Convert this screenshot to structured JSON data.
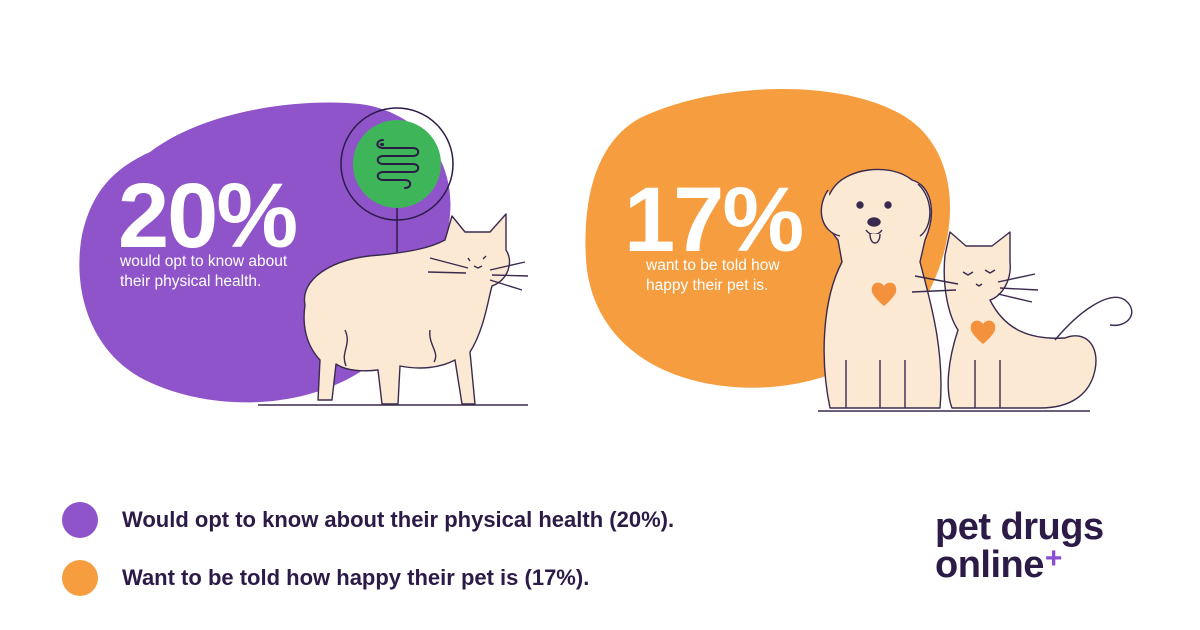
{
  "colors": {
    "purple": "#8f54c9",
    "orange": "#f69d3f",
    "green": "#3fb55a",
    "cream": "#fbe9d4",
    "heart": "#f3913c",
    "ink": "#2c1b47"
  },
  "stat_left": {
    "value": "20%",
    "caption_line1": "would opt to know about",
    "caption_line2": "their physical health."
  },
  "stat_right": {
    "value": "17%",
    "caption_line1": "want to be told how",
    "caption_line2": "happy their pet is."
  },
  "legend": [
    {
      "label": "Would opt to know about their physical health (20%).",
      "color": "#8f54c9"
    },
    {
      "label": "Want to be told how happy their pet is (17%).",
      "color": "#f69d3f"
    }
  ],
  "brand": {
    "line1": "pet drugs",
    "line2": "online",
    "plus": "+"
  },
  "icons": [
    "intestine-icon",
    "cat-illustration",
    "dog-illustration",
    "heart-icon"
  ]
}
